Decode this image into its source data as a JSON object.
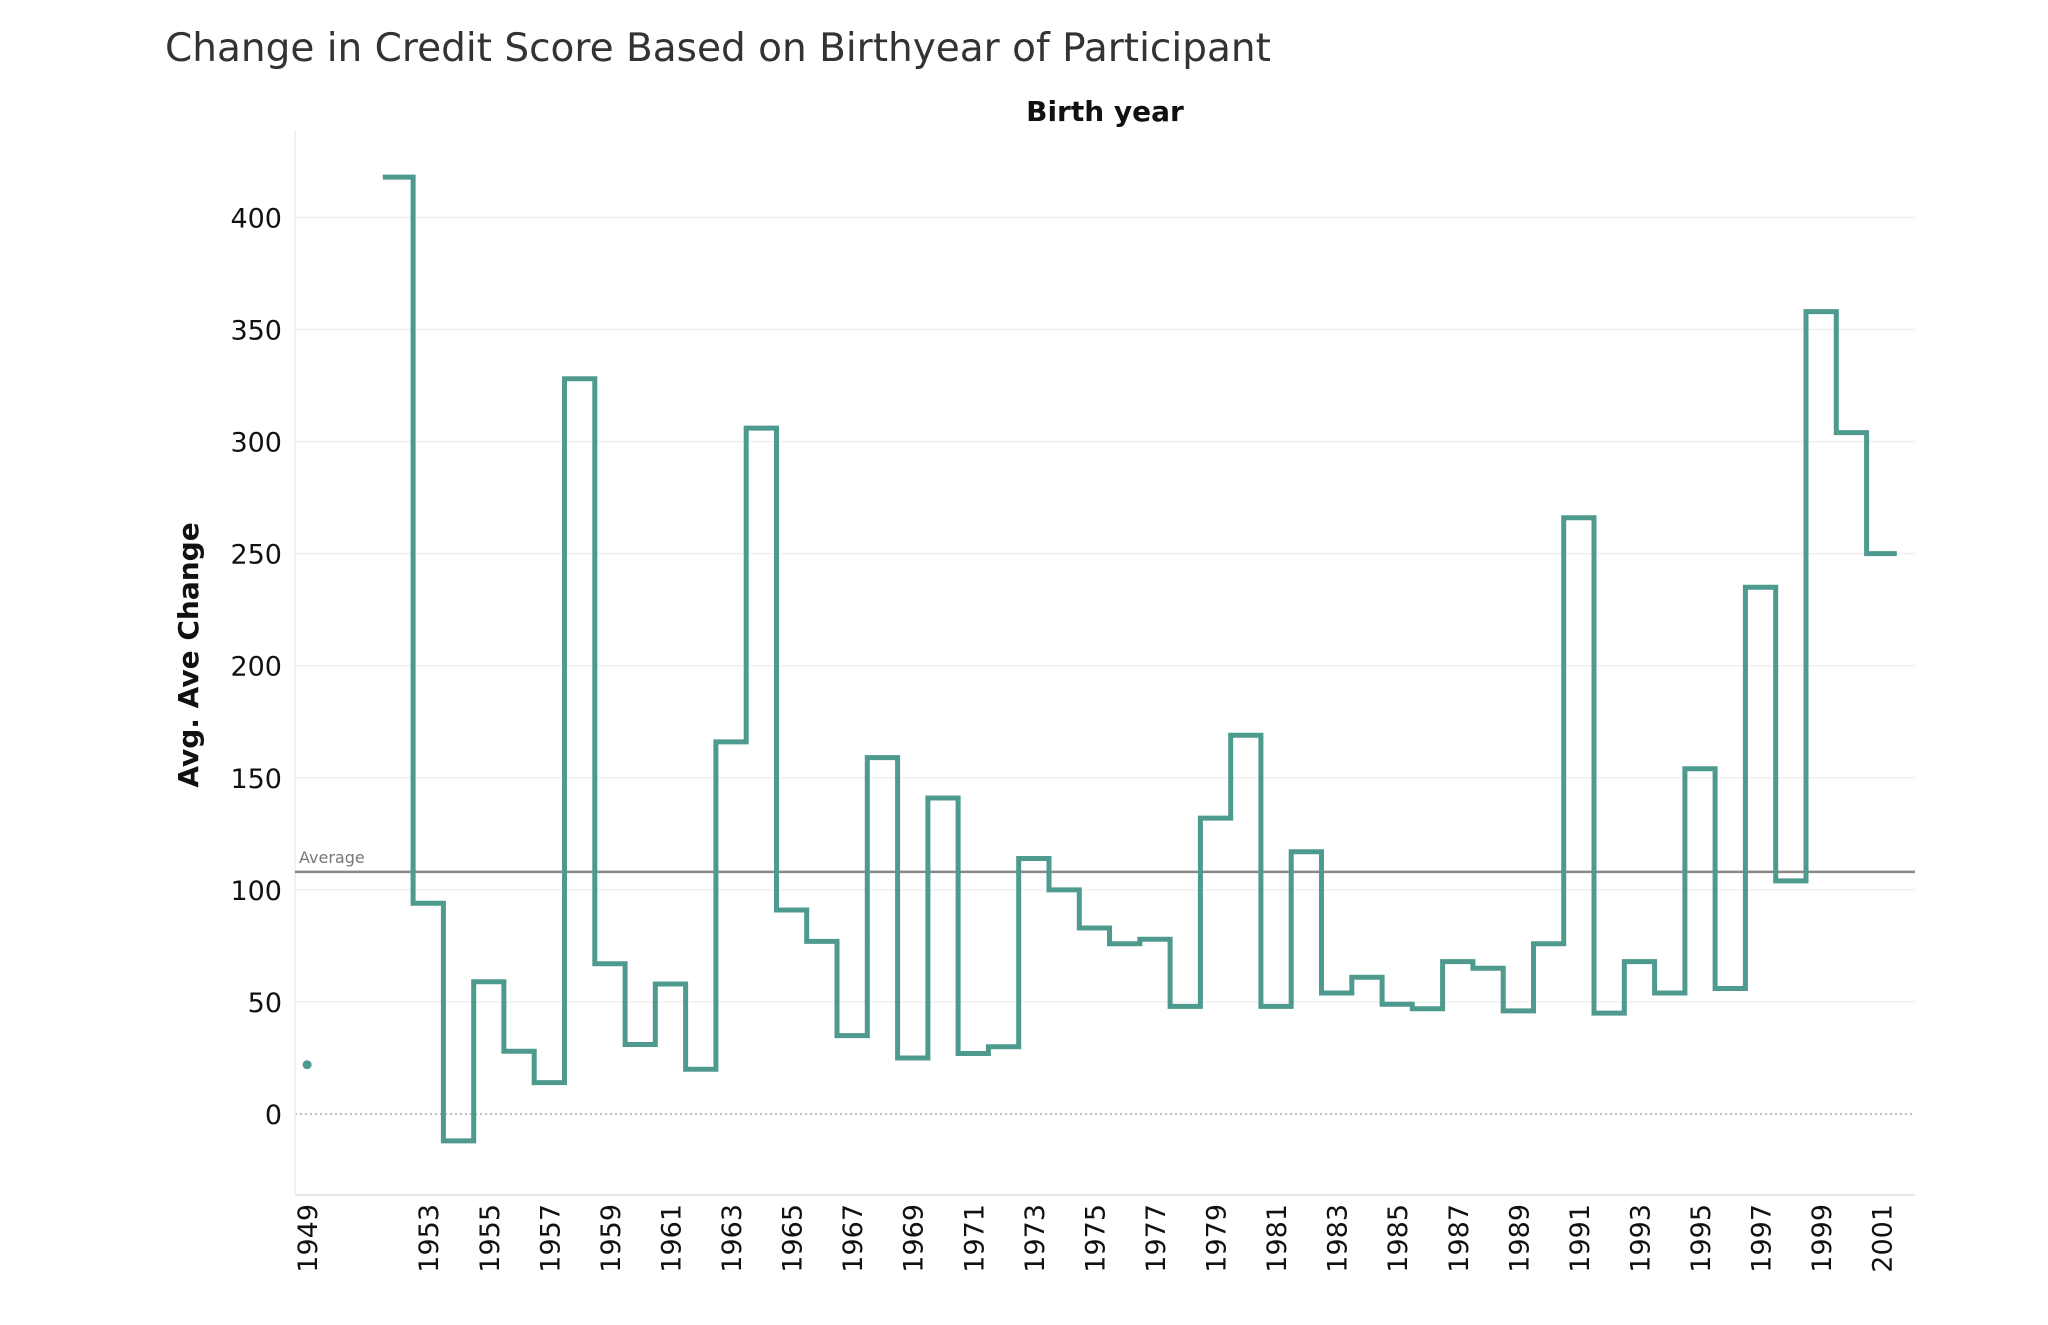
{
  "chart_data": {
    "type": "line",
    "subtype": "step",
    "title": "Change in Credit Score Based on Birthyear of Participant",
    "xlabel": "Birth year",
    "ylabel": "Avg. Ave Change",
    "ylim": [
      -33,
      435
    ],
    "y_ticks": [
      0,
      50,
      100,
      150,
      200,
      250,
      300,
      350,
      400
    ],
    "x_tick_labels": [
      "1949",
      "1953",
      "1955",
      "1957",
      "1959",
      "1961",
      "1963",
      "1965",
      "1967",
      "1969",
      "1971",
      "1973",
      "1975",
      "1977",
      "1979",
      "1981",
      "1983",
      "1985",
      "1987",
      "1989",
      "1991",
      "1993",
      "1995",
      "1997",
      "1999",
      "2001"
    ],
    "series": [
      {
        "color": "#4e9a8e",
        "x": [
          1952,
          1953,
          1954,
          1955,
          1956,
          1957,
          1958,
          1959,
          1960,
          1961,
          1962,
          1963,
          1964,
          1965,
          1966,
          1967,
          1968,
          1969,
          1970,
          1971,
          1972,
          1973,
          1974,
          1975,
          1976,
          1977,
          1978,
          1979,
          1980,
          1981,
          1982,
          1983,
          1984,
          1985,
          1986,
          1987,
          1988,
          1989,
          1990,
          1991,
          1992,
          1993,
          1994,
          1995,
          1996,
          1997,
          1998,
          1999,
          2000,
          2001
        ],
        "values": [
          418,
          94,
          -12,
          59,
          28,
          14,
          328,
          67,
          31,
          58,
          20,
          166,
          306,
          91,
          77,
          35,
          159,
          25,
          141,
          27,
          30,
          114,
          100,
          83,
          76,
          78,
          48,
          132,
          169,
          48,
          117,
          54,
          61,
          49,
          47,
          68,
          65,
          46,
          76,
          266,
          45,
          68,
          54,
          154,
          56,
          235,
          104,
          358,
          304,
          250
        ]
      }
    ],
    "isolated_points": [
      {
        "x": 1949,
        "y": 22
      }
    ],
    "reference_line": {
      "label": "Average",
      "value": 108,
      "color": "#888888"
    },
    "zero_line": {
      "value": 0,
      "style": "dotted"
    },
    "grid": true,
    "legend": "none"
  }
}
